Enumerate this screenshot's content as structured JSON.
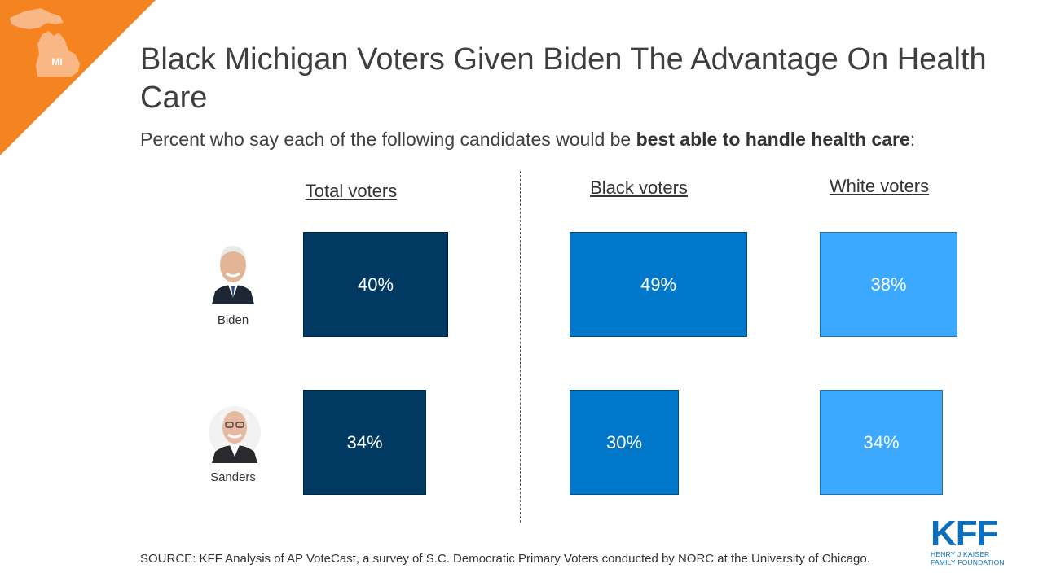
{
  "badge": {
    "state_label": "MI"
  },
  "title": "Black Michigan Voters Given Biden The Advantage On Health Care",
  "subtitle": {
    "prefix": "Percent who say each of the following candidates would be ",
    "bold": "best able to handle health care",
    "suffix": ":"
  },
  "chart_data": {
    "type": "bar",
    "categories": [
      "Biden",
      "Sanders"
    ],
    "series": [
      {
        "name": "Total voters",
        "values": [
          40,
          34
        ],
        "labels": [
          "40%",
          "34%"
        ],
        "color": "#003a63"
      },
      {
        "name": "Black voters",
        "values": [
          49,
          30
        ],
        "labels": [
          "49%",
          "30%"
        ],
        "color": "#0077c8"
      },
      {
        "name": "White voters",
        "values": [
          38,
          34
        ],
        "labels": [
          "38%",
          "34%"
        ],
        "color": "#3ca9ff"
      }
    ]
  },
  "candidates": [
    {
      "name": "Biden",
      "photo_icon": "biden-portrait-icon"
    },
    {
      "name": "Sanders",
      "photo_icon": "sanders-portrait-icon"
    }
  ],
  "source": "SOURCE: KFF Analysis of AP VoteCast, a survey of S.C. Democratic Primary Voters conducted by NORC at the University of Chicago.",
  "logo": {
    "main": "KFF",
    "line1": "HENRY J KAISER",
    "line2": "FAMILY FOUNDATION",
    "color": "#0b6fbd"
  },
  "colors": {
    "accent": "#f5831f"
  }
}
